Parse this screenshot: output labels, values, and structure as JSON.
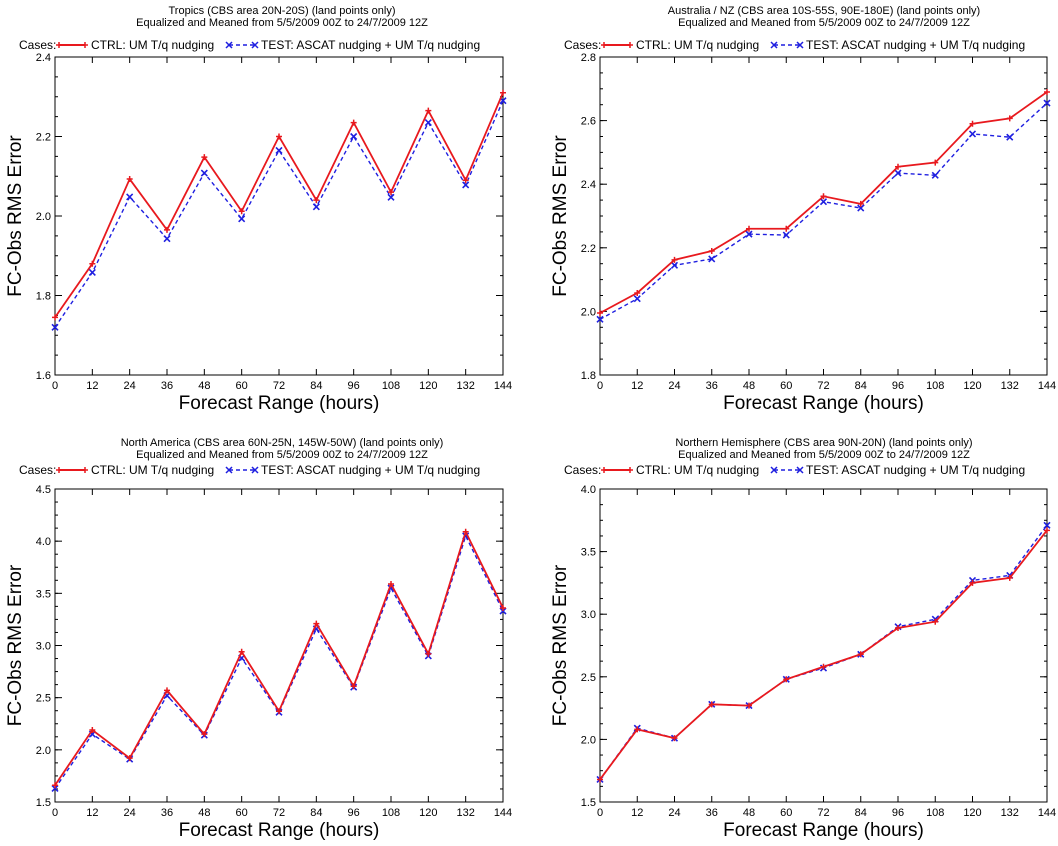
{
  "legend_prefix": "Cases:",
  "x_label": "Forecast Range (hours)",
  "y_label": "FC-Obs RMS Error",
  "colors": {
    "ctrl": "#e8191e",
    "test": "#1f1fe0"
  },
  "chart_data": [
    {
      "type": "line",
      "title": "Tropics (CBS area 20N-20S) (land points only)",
      "subtitle": "Equalized and Meaned from 5/5/2009 00Z to 24/7/2009 12Z",
      "xlabel": "Forecast Range (hours)",
      "ylabel": "FC-Obs RMS Error",
      "x": [
        0,
        12,
        24,
        36,
        48,
        60,
        72,
        84,
        96,
        108,
        120,
        132,
        144
      ],
      "xticks": [
        "0",
        "12",
        "24",
        "36",
        "48",
        "60",
        "72",
        "84",
        "96",
        "108",
        "120",
        "132",
        "144"
      ],
      "xlim": [
        0,
        144
      ],
      "ylim": [
        1.6,
        2.4
      ],
      "yticks": [
        "1.6",
        "1.8",
        "2.0",
        "2.2",
        "2.4"
      ],
      "series": [
        {
          "name": "CTRL: UM T/q nudging",
          "values": [
            1.745,
            1.88,
            2.093,
            1.965,
            2.148,
            2.012,
            2.2,
            2.04,
            2.235,
            2.06,
            2.265,
            2.09,
            2.31
          ]
        },
        {
          "name": "TEST: ASCAT nudging + UM T/q nudging",
          "values": [
            1.72,
            1.858,
            2.048,
            1.943,
            2.108,
            1.993,
            2.165,
            2.023,
            2.2,
            2.047,
            2.235,
            2.078,
            2.29
          ]
        }
      ]
    },
    {
      "type": "line",
      "title": "Australia / NZ (CBS area 10S-55S, 90E-180E) (land points only)",
      "subtitle": "Equalized and Meaned from 5/5/2009 00Z to 24/7/2009 12Z",
      "xlabel": "Forecast Range (hours)",
      "ylabel": "FC-Obs RMS Error",
      "x": [
        0,
        12,
        24,
        36,
        48,
        60,
        72,
        84,
        96,
        108,
        120,
        132,
        144
      ],
      "xticks": [
        "0",
        "12",
        "24",
        "36",
        "48",
        "60",
        "72",
        "84",
        "96",
        "108",
        "120",
        "132",
        "144"
      ],
      "xlim": [
        0,
        144
      ],
      "ylim": [
        1.8,
        2.8
      ],
      "yticks": [
        "1.8",
        "2.0",
        "2.2",
        "2.4",
        "2.6",
        "2.8"
      ],
      "series": [
        {
          "name": "CTRL: UM T/q nudging",
          "values": [
            1.995,
            2.058,
            2.162,
            2.19,
            2.26,
            2.26,
            2.362,
            2.338,
            2.455,
            2.468,
            2.59,
            2.607,
            2.69
          ]
        },
        {
          "name": "TEST: ASCAT nudging + UM T/q nudging",
          "values": [
            1.975,
            2.04,
            2.145,
            2.165,
            2.243,
            2.24,
            2.345,
            2.325,
            2.435,
            2.428,
            2.558,
            2.548,
            2.655
          ]
        }
      ]
    },
    {
      "type": "line",
      "title": "North America (CBS area 60N-25N, 145W-50W) (land points only)",
      "subtitle": "Equalized and Meaned from 5/5/2009 00Z to 24/7/2009 12Z",
      "xlabel": "Forecast Range (hours)",
      "ylabel": "FC-Obs RMS Error",
      "x": [
        0,
        12,
        24,
        36,
        48,
        60,
        72,
        84,
        96,
        108,
        120,
        132,
        144
      ],
      "xticks": [
        "0",
        "12",
        "24",
        "36",
        "48",
        "60",
        "72",
        "84",
        "96",
        "108",
        "120",
        "132",
        "144"
      ],
      "xlim": [
        0,
        144
      ],
      "ylim": [
        1.5,
        4.5
      ],
      "yticks": [
        "1.5",
        "2.0",
        "2.5",
        "3.0",
        "3.5",
        "4.0",
        "4.5"
      ],
      "series": [
        {
          "name": "CTRL: UM T/q nudging",
          "values": [
            1.66,
            2.19,
            1.92,
            2.57,
            2.15,
            2.94,
            2.37,
            3.21,
            2.61,
            3.59,
            2.92,
            4.09,
            3.36
          ]
        },
        {
          "name": "TEST: ASCAT nudging + UM T/q nudging",
          "values": [
            1.63,
            2.15,
            1.91,
            2.52,
            2.14,
            2.88,
            2.36,
            3.16,
            2.6,
            3.55,
            2.9,
            4.05,
            3.33
          ]
        }
      ]
    },
    {
      "type": "line",
      "title": "Northern Hemisphere (CBS area 90N-20N) (land points only)",
      "subtitle": "Equalized and Meaned from 5/5/2009 00Z to 24/7/2009 12Z",
      "xlabel": "Forecast Range (hours)",
      "ylabel": "FC-Obs RMS Error",
      "x": [
        0,
        12,
        24,
        36,
        48,
        60,
        72,
        84,
        96,
        108,
        120,
        132,
        144
      ],
      "xticks": [
        "0",
        "12",
        "24",
        "36",
        "48",
        "60",
        "72",
        "84",
        "96",
        "108",
        "120",
        "132",
        "144"
      ],
      "xlim": [
        0,
        144
      ],
      "ylim": [
        1.5,
        4.0
      ],
      "yticks": [
        "1.5",
        "2.0",
        "2.5",
        "3.0",
        "3.5",
        "4.0"
      ],
      "series": [
        {
          "name": "CTRL: UM T/q nudging",
          "values": [
            1.68,
            2.08,
            2.01,
            2.28,
            2.27,
            2.48,
            2.58,
            2.68,
            2.89,
            2.94,
            3.25,
            3.29,
            3.67
          ]
        },
        {
          "name": "TEST: ASCAT nudging + UM T/q nudging",
          "values": [
            1.68,
            2.09,
            2.01,
            2.28,
            2.27,
            2.48,
            2.57,
            2.68,
            2.9,
            2.96,
            3.27,
            3.31,
            3.71
          ]
        }
      ]
    }
  ]
}
